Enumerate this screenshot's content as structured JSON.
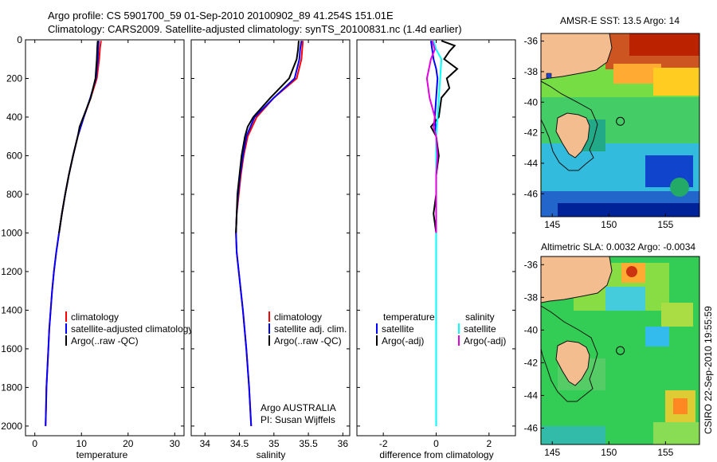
{
  "header": {
    "title_line1": "Argo profile: CS 5901700_59 01-Sep-2010 20100902_89 41.254S 151.01E",
    "title_line2": "Climatology: CARS2009. Satellite-adjusted climatology: synTS_20100831.nc (1.4d earlier)"
  },
  "side_label": "CSIRO 22-Sep-2010 19:55:59",
  "chart_data": [
    {
      "id": "temperature",
      "type": "line",
      "xlabel": "temperature",
      "xlim": [
        -2,
        32
      ],
      "xticks": [
        0,
        10,
        20,
        30
      ],
      "ylim": [
        2050,
        0
      ],
      "yticks": [
        0,
        200,
        400,
        600,
        800,
        1000,
        1200,
        1400,
        1600,
        1800,
        2000
      ],
      "legend": [
        "climatology",
        "satellite-adjusted climatology",
        "Argo(..raw -QC)"
      ],
      "series": [
        {
          "name": "climatology",
          "color": "#ff0000",
          "depth": [
            5,
            40,
            100,
            200,
            300,
            400,
            500,
            600,
            700,
            800,
            900,
            1000,
            1100,
            1200,
            1300,
            1400,
            1500,
            1600,
            1700,
            1800,
            1900,
            2000
          ],
          "values": [
            14.2,
            14.0,
            13.8,
            13.3,
            12.0,
            10.5,
            9.2,
            8.2,
            7.3,
            6.5,
            5.8,
            5.2,
            4.6,
            4.1,
            3.7,
            3.4,
            3.1,
            2.9,
            2.7,
            2.5,
            2.4,
            2.3
          ]
        },
        {
          "name": "satellite-adjusted climatology",
          "color": "#0000ff",
          "depth": [
            5,
            40,
            100,
            200,
            300,
            400,
            500,
            600,
            700,
            800,
            900,
            1000,
            1100,
            1200,
            1300,
            1400,
            1500,
            1600,
            1700,
            1800,
            1900,
            2000
          ],
          "values": [
            13.7,
            13.6,
            13.5,
            13.1,
            11.9,
            10.5,
            9.2,
            8.2,
            7.3,
            6.5,
            5.8,
            5.2,
            4.6,
            4.1,
            3.7,
            3.4,
            3.1,
            2.9,
            2.7,
            2.5,
            2.4,
            2.3
          ]
        },
        {
          "name": "Argo(..raw -QC)",
          "color": "#000000",
          "depth": [
            5,
            40,
            100,
            200,
            300,
            400,
            450,
            500,
            600,
            700,
            800,
            900,
            1000
          ],
          "values": [
            13.5,
            13.4,
            13.3,
            13.0,
            12.0,
            10.4,
            9.6,
            9.2,
            8.2,
            7.3,
            6.5,
            5.8,
            5.2
          ]
        }
      ]
    },
    {
      "id": "salinity",
      "type": "line",
      "xlabel": "salinity",
      "xlim": [
        33.8,
        36.1
      ],
      "xticks": [
        34,
        34.5,
        35,
        35.5,
        36
      ],
      "ylim": [
        2050,
        0
      ],
      "legend": [
        "climatology",
        "satellite adj. clim.",
        "Argo(..raw -QC)"
      ],
      "annotation": [
        "Argo AUSTRALIA",
        "PI: Susan Wijffels"
      ],
      "series": [
        {
          "name": "climatology",
          "color": "#ff0000",
          "depth": [
            5,
            50,
            100,
            200,
            300,
            400,
            500,
            600,
            700,
            800,
            900,
            1000,
            1100,
            1200,
            1400,
            1600,
            1800,
            2000
          ],
          "values": [
            35.42,
            35.41,
            35.4,
            35.33,
            35.0,
            34.75,
            34.62,
            34.56,
            34.52,
            34.49,
            34.46,
            34.45,
            34.46,
            34.49,
            34.55,
            34.6,
            34.64,
            34.67
          ]
        },
        {
          "name": "satellite adj. clim.",
          "color": "#0000ff",
          "depth": [
            5,
            50,
            100,
            200,
            300,
            400,
            500,
            600,
            700,
            800,
            900,
            1000,
            1100,
            1200,
            1400,
            1600,
            1800,
            2000
          ],
          "values": [
            35.4,
            35.38,
            35.37,
            35.3,
            35.0,
            34.72,
            34.6,
            34.55,
            34.51,
            34.48,
            34.46,
            34.45,
            34.46,
            34.49,
            34.55,
            34.6,
            34.64,
            34.67
          ]
        },
        {
          "name": "Argo(..raw -QC)",
          "color": "#000000",
          "depth": [
            5,
            50,
            100,
            200,
            300,
            400,
            450,
            500,
            600,
            700,
            800,
            900,
            1000
          ],
          "values": [
            35.36,
            35.35,
            35.33,
            35.22,
            34.95,
            34.7,
            34.62,
            34.58,
            34.53,
            34.5,
            34.47,
            34.46,
            34.45
          ]
        }
      ]
    },
    {
      "id": "difference",
      "type": "line",
      "xlabel": "difference from climatology",
      "xlim": [
        -3,
        3
      ],
      "xticks": [
        -2,
        0,
        2
      ],
      "ylim": [
        2050,
        0
      ],
      "legend_temperature_title": "temperature",
      "legend_salinity_title": "salinity",
      "legend_temperature": [
        "satellite",
        "Argo(-adj)"
      ],
      "legend_salinity": [
        "satellite",
        "Argo(-adj)"
      ],
      "series": [
        {
          "name": "temperature satellite",
          "color": "#0000ff",
          "depth": [
            5,
            50,
            100,
            150,
            200,
            300,
            400,
            500,
            600,
            800,
            1000,
            1200,
            1500,
            2000
          ],
          "values": [
            -0.2,
            -0.15,
            -0.1,
            0.0,
            0.05,
            0.0,
            -0.05,
            0.0,
            0.0,
            0.0,
            0.0,
            0.0,
            0.0,
            0.0
          ]
        },
        {
          "name": "temperature Argo(-adj)",
          "color": "#000000",
          "depth": [
            5,
            30,
            60,
            100,
            150,
            200,
            250,
            300,
            400,
            450,
            500,
            600,
            700,
            800,
            900,
            1000
          ],
          "values": [
            0.2,
            0.7,
            0.5,
            0.3,
            0.8,
            0.4,
            0.5,
            0.2,
            0.1,
            -0.2,
            0.0,
            0.1,
            0.0,
            0.0,
            -0.1,
            0.0
          ]
        },
        {
          "name": "salinity satellite",
          "color": "#00ffff",
          "depth": [
            5,
            50,
            100,
            200,
            300,
            400,
            500,
            600,
            800,
            1000,
            1200,
            1500,
            2000
          ],
          "values": [
            -0.1,
            0.0,
            0.2,
            0.15,
            0.1,
            0.05,
            0.0,
            0.0,
            0.0,
            0.0,
            0.0,
            0.0,
            0.0
          ]
        },
        {
          "name": "salinity Argo(-adj)",
          "color": "#e000e0",
          "depth": [
            5,
            50,
            100,
            200,
            300,
            400,
            450,
            500,
            600,
            700,
            800,
            900,
            1000
          ],
          "values": [
            -0.15,
            -0.05,
            -0.2,
            -0.35,
            -0.25,
            -0.05,
            -0.1,
            0.0,
            0.05,
            0.0,
            0.0,
            0.0,
            0.0
          ]
        }
      ]
    },
    {
      "id": "sst_map",
      "type": "heatmap",
      "title": "AMSR-E SST: 13.5 Argo: 14",
      "xticks": [
        145,
        150,
        155
      ],
      "yticks": [
        -36,
        -38,
        -40,
        -42,
        -44,
        -46
      ],
      "xlim": [
        144,
        158
      ],
      "ylim": [
        -47.5,
        -35.5
      ],
      "argo_position": {
        "lon": 151.01,
        "lat": -41.254
      }
    },
    {
      "id": "sla_map",
      "type": "heatmap",
      "title": "Altimetric SLA: 0.0032 Argo: -0.0034",
      "xticks": [
        145,
        150,
        155
      ],
      "yticks": [
        -36,
        -38,
        -40,
        -42,
        -44,
        -46
      ],
      "xlim": [
        144,
        158
      ],
      "ylim": [
        -47,
        -35.5
      ],
      "argo_position": {
        "lon": 151.01,
        "lat": -41.254
      }
    }
  ]
}
